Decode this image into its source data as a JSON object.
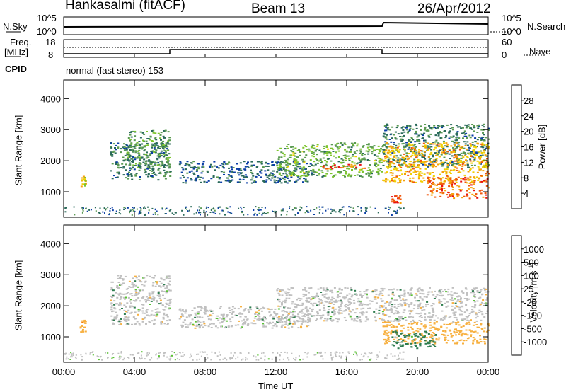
{
  "header": {
    "station": "Hankasalmi (fitACF)",
    "beam": "Beam 13",
    "date": "26/Apr/2012"
  },
  "noise_panel": {
    "left_label": "N.Sky",
    "right_label": "N.Search",
    "ticks_left": [
      "10^5",
      "10^0"
    ],
    "ticks_right": [
      "10^5",
      "10^0"
    ]
  },
  "freq_panel": {
    "left_label_1": "Freq.",
    "left_label_2": "[MHz]",
    "ticks_left": [
      "18",
      "8"
    ],
    "ticks_right": [
      "60",
      "0"
    ],
    "right_label": "Nave",
    "cpid_label": "CPID",
    "mode_text": "normal (fast stereo) 153"
  },
  "colors": {
    "power_scale": [
      "#0019ff",
      "#0a3ea6",
      "#2a6a5a",
      "#5a9a52",
      "#7cc52c",
      "#f0d000",
      "#f5a10a",
      "#f0560a",
      "#e81010"
    ],
    "velocity_scale": [
      "#2133b0",
      "#2f6fb0",
      "#2e7d4f",
      "#5ac234",
      "#c0c0c0",
      "#c0c0c0",
      "#f7b040",
      "#f57a0a",
      "#f03010"
    ]
  },
  "chart_data": [
    {
      "type": "heatmap",
      "panel": "power",
      "ylabel": "Slant Range [km]",
      "ylim": [
        180,
        4600
      ],
      "yticks": [
        "1000",
        "2000",
        "3000",
        "4000"
      ],
      "xlim": [
        "00:00",
        "24:00"
      ],
      "colorbar": {
        "label": "Power [dB]",
        "ticks": [
          "4",
          "8",
          "12",
          "16",
          "20",
          "24",
          "28"
        ],
        "range": [
          0,
          32
        ]
      },
      "bands": [
        {
          "t_start": 0.9,
          "t_end": 1.2,
          "r_low": 1150,
          "r_high": 1550,
          "level": 20
        },
        {
          "t_start": 2.6,
          "t_end": 6.0,
          "r_low": 1400,
          "r_high": 2600,
          "level": 10
        },
        {
          "t_start": 3.5,
          "t_end": 6.0,
          "r_low": 1800,
          "r_high": 3000,
          "level": 12
        },
        {
          "t_start": 6.5,
          "t_end": 14.0,
          "r_low": 1300,
          "r_high": 2000,
          "level": 8
        },
        {
          "t_start": 12.0,
          "t_end": 18.0,
          "r_low": 1500,
          "r_high": 2600,
          "level": 14
        },
        {
          "t_start": 14.5,
          "t_end": 17.0,
          "r_low": 1750,
          "r_high": 1900,
          "level": 26
        },
        {
          "t_start": 18.0,
          "t_end": 24.0,
          "r_low": 1800,
          "r_high": 3200,
          "level": 10
        },
        {
          "t_start": 18.0,
          "t_end": 24.0,
          "r_low": 1300,
          "r_high": 2600,
          "level": 22
        },
        {
          "t_start": 20.5,
          "t_end": 24.0,
          "r_low": 800,
          "r_high": 1500,
          "level": 26
        },
        {
          "t_start": 18.5,
          "t_end": 19.0,
          "r_low": 650,
          "r_high": 900,
          "level": 28
        }
      ]
    },
    {
      "type": "heatmap",
      "panel": "velocity",
      "ylabel": "Slant Range [km]",
      "ylim": [
        180,
        4600
      ],
      "yticks": [
        "1000",
        "2000",
        "3000",
        "4000"
      ],
      "xlabel": "Time UT",
      "xticks": [
        "00:00",
        "04:00",
        "08:00",
        "12:00",
        "16:00",
        "20:00",
        "00:00"
      ],
      "colorbar": {
        "label": "Velocity [m s",
        "label_sup": "-1",
        "label_end": "]",
        "ticks": [
          "1000",
          "500",
          "100",
          "25",
          "-25",
          "-100",
          "-500",
          "-1000"
        ]
      },
      "bands": [
        {
          "t_start": 0.9,
          "t_end": 1.2,
          "r_low": 1150,
          "r_high": 1550,
          "level": -400
        },
        {
          "t_start": 2.6,
          "t_end": 6.0,
          "r_low": 1400,
          "r_high": 3000,
          "level": 0
        },
        {
          "t_start": 6.5,
          "t_end": 14.0,
          "r_low": 1300,
          "r_high": 2000,
          "level": 0
        },
        {
          "t_start": 12.0,
          "t_end": 24.0,
          "r_low": 1500,
          "r_high": 2600,
          "level": 0
        },
        {
          "t_start": 18.0,
          "t_end": 24.0,
          "r_low": 800,
          "r_high": 1500,
          "level": -300
        },
        {
          "t_start": 18.5,
          "t_end": 21.0,
          "r_low": 650,
          "r_high": 1200,
          "level": 120
        }
      ]
    }
  ]
}
